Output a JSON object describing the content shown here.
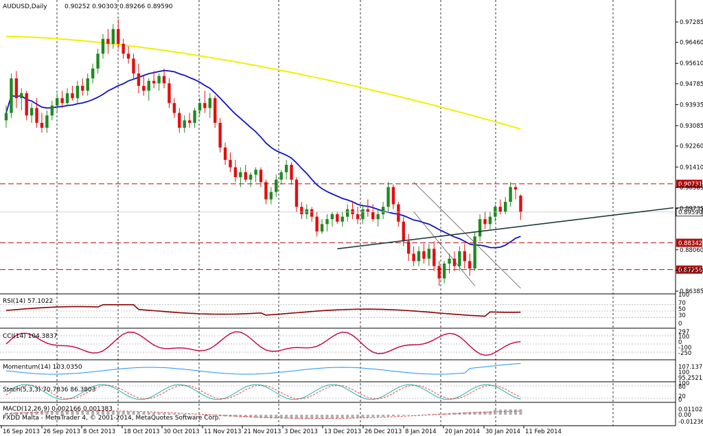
{
  "header": {
    "symbol": "AUDUSD,Daily",
    "ohlc": "0.90252 0.90303 0.89266 0.89590"
  },
  "footer": {
    "copyright": "FXDD Malta - MetaTrader 4, © 2001-2014, MetaQuotes Software Corp."
  },
  "indicators": {
    "rsi": "RSI(14) 57.1022",
    "cci": "CCI(14) 104.3837",
    "momentum": "Momentum(14) 103.0350",
    "stoch": "Stoch(5,3,3) 70.7836 86.3803",
    "macd": "MACD(12,26,9) 0.002166 0.001383"
  },
  "colors": {
    "bull": "#1f8a1f",
    "bear": "#e01010",
    "ma_fast": "#1010c8",
    "ma_slow": "#f0f000",
    "level": "#b01010",
    "trend": "#1e3a3a",
    "rsi_line": "#8b0000",
    "cci_line": "#c0003a",
    "momentum_line": "#1e90ff",
    "stoch_main": "#20b2aa",
    "stoch_signal": "#e04040",
    "macd_hist": "#b0b0b0",
    "macd_signal": "#e04040"
  },
  "chart_data": {
    "type": "candlestick",
    "price_axis": {
      "ylim": [
        0.86385,
        0.97285
      ],
      "ticks": [
        "0.97285",
        "0.96460",
        "0.95610",
        "0.94785",
        "0.93935",
        "0.93085",
        "0.92260",
        "0.91410",
        "0.90585",
        "0.89735",
        "0.88060",
        "0.87235",
        "0.86385"
      ]
    },
    "levels": [
      {
        "value": 0.90731,
        "label": "0.90731",
        "style": "dashed"
      },
      {
        "value": 0.88342,
        "label": "0.88342",
        "style": "dashed"
      },
      {
        "value": 0.87256,
        "label": "0.87256",
        "style": "dashed"
      },
      {
        "value": 0.8959,
        "label": "0.89590",
        "style": "current"
      }
    ],
    "date_labels": [
      "16 Sep 2013",
      "26 Sep 2013",
      "8 Oct 2013",
      "18 Oct 2013",
      "30 Oct 2013",
      "11 Nov 2013",
      "21 Nov 2013",
      "3 Dec 2013",
      "13 Dec 2013",
      "26 Dec 2013",
      "8 Jan 2014",
      "20 Jan 2014",
      "30 Jan 2014",
      "11 Feb 2014"
    ],
    "candles": [
      {
        "o": 0.933,
        "h": 0.939,
        "l": 0.93,
        "c": 0.936
      },
      {
        "o": 0.936,
        "h": 0.952,
        "l": 0.934,
        "c": 0.95
      },
      {
        "o": 0.95,
        "h": 0.953,
        "l": 0.938,
        "c": 0.942
      },
      {
        "o": 0.942,
        "h": 0.946,
        "l": 0.937,
        "c": 0.944
      },
      {
        "o": 0.944,
        "h": 0.945,
        "l": 0.933,
        "c": 0.935
      },
      {
        "o": 0.935,
        "h": 0.94,
        "l": 0.932,
        "c": 0.938
      },
      {
        "o": 0.938,
        "h": 0.942,
        "l": 0.93,
        "c": 0.932
      },
      {
        "o": 0.932,
        "h": 0.936,
        "l": 0.928,
        "c": 0.93
      },
      {
        "o": 0.93,
        "h": 0.937,
        "l": 0.928,
        "c": 0.935
      },
      {
        "o": 0.935,
        "h": 0.941,
        "l": 0.933,
        "c": 0.939
      },
      {
        "o": 0.939,
        "h": 0.944,
        "l": 0.936,
        "c": 0.942
      },
      {
        "o": 0.942,
        "h": 0.945,
        "l": 0.938,
        "c": 0.94
      },
      {
        "o": 0.94,
        "h": 0.946,
        "l": 0.939,
        "c": 0.944
      },
      {
        "o": 0.944,
        "h": 0.947,
        "l": 0.941,
        "c": 0.942
      },
      {
        "o": 0.942,
        "h": 0.949,
        "l": 0.94,
        "c": 0.947
      },
      {
        "o": 0.947,
        "h": 0.95,
        "l": 0.943,
        "c": 0.945
      },
      {
        "o": 0.945,
        "h": 0.952,
        "l": 0.943,
        "c": 0.95
      },
      {
        "o": 0.95,
        "h": 0.956,
        "l": 0.948,
        "c": 0.954
      },
      {
        "o": 0.954,
        "h": 0.962,
        "l": 0.952,
        "c": 0.96
      },
      {
        "o": 0.96,
        "h": 0.968,
        "l": 0.958,
        "c": 0.966
      },
      {
        "o": 0.966,
        "h": 0.97,
        "l": 0.96,
        "c": 0.964
      },
      {
        "o": 0.964,
        "h": 0.972,
        "l": 0.962,
        "c": 0.97
      },
      {
        "o": 0.97,
        "h": 0.974,
        "l": 0.962,
        "c": 0.964
      },
      {
        "o": 0.964,
        "h": 0.966,
        "l": 0.958,
        "c": 0.96
      },
      {
        "o": 0.96,
        "h": 0.963,
        "l": 0.956,
        "c": 0.958
      },
      {
        "o": 0.958,
        "h": 0.96,
        "l": 0.95,
        "c": 0.952
      },
      {
        "o": 0.952,
        "h": 0.956,
        "l": 0.944,
        "c": 0.947
      },
      {
        "o": 0.947,
        "h": 0.951,
        "l": 0.943,
        "c": 0.945
      },
      {
        "o": 0.945,
        "h": 0.95,
        "l": 0.941,
        "c": 0.949
      },
      {
        "o": 0.949,
        "h": 0.953,
        "l": 0.946,
        "c": 0.948
      },
      {
        "o": 0.948,
        "h": 0.952,
        "l": 0.945,
        "c": 0.951
      },
      {
        "o": 0.951,
        "h": 0.954,
        "l": 0.946,
        "c": 0.948
      },
      {
        "o": 0.948,
        "h": 0.95,
        "l": 0.938,
        "c": 0.94
      },
      {
        "o": 0.94,
        "h": 0.942,
        "l": 0.934,
        "c": 0.936
      },
      {
        "o": 0.936,
        "h": 0.938,
        "l": 0.928,
        "c": 0.93
      },
      {
        "o": 0.93,
        "h": 0.935,
        "l": 0.928,
        "c": 0.933
      },
      {
        "o": 0.933,
        "h": 0.936,
        "l": 0.93,
        "c": 0.932
      },
      {
        "o": 0.932,
        "h": 0.938,
        "l": 0.93,
        "c": 0.937
      },
      {
        "o": 0.937,
        "h": 0.942,
        "l": 0.935,
        "c": 0.94
      },
      {
        "o": 0.94,
        "h": 0.945,
        "l": 0.936,
        "c": 0.938
      },
      {
        "o": 0.938,
        "h": 0.944,
        "l": 0.934,
        "c": 0.942
      },
      {
        "o": 0.942,
        "h": 0.943,
        "l": 0.93,
        "c": 0.932
      },
      {
        "o": 0.932,
        "h": 0.934,
        "l": 0.92,
        "c": 0.922
      },
      {
        "o": 0.922,
        "h": 0.924,
        "l": 0.915,
        "c": 0.917
      },
      {
        "o": 0.917,
        "h": 0.92,
        "l": 0.912,
        "c": 0.914
      },
      {
        "o": 0.914,
        "h": 0.917,
        "l": 0.908,
        "c": 0.91
      },
      {
        "o": 0.91,
        "h": 0.914,
        "l": 0.906,
        "c": 0.912
      },
      {
        "o": 0.912,
        "h": 0.915,
        "l": 0.908,
        "c": 0.909
      },
      {
        "o": 0.909,
        "h": 0.912,
        "l": 0.906,
        "c": 0.911
      },
      {
        "o": 0.911,
        "h": 0.914,
        "l": 0.908,
        "c": 0.913
      },
      {
        "o": 0.913,
        "h": 0.914,
        "l": 0.906,
        "c": 0.908
      },
      {
        "o": 0.908,
        "h": 0.909,
        "l": 0.899,
        "c": 0.901
      },
      {
        "o": 0.901,
        "h": 0.906,
        "l": 0.899,
        "c": 0.904
      },
      {
        "o": 0.904,
        "h": 0.911,
        "l": 0.902,
        "c": 0.909
      },
      {
        "o": 0.909,
        "h": 0.913,
        "l": 0.907,
        "c": 0.912
      },
      {
        "o": 0.912,
        "h": 0.917,
        "l": 0.909,
        "c": 0.915
      },
      {
        "o": 0.915,
        "h": 0.916,
        "l": 0.907,
        "c": 0.909
      },
      {
        "o": 0.909,
        "h": 0.91,
        "l": 0.896,
        "c": 0.898
      },
      {
        "o": 0.898,
        "h": 0.9,
        "l": 0.893,
        "c": 0.895
      },
      {
        "o": 0.895,
        "h": 0.899,
        "l": 0.893,
        "c": 0.897
      },
      {
        "o": 0.897,
        "h": 0.898,
        "l": 0.892,
        "c": 0.894
      },
      {
        "o": 0.894,
        "h": 0.896,
        "l": 0.886,
        "c": 0.888
      },
      {
        "o": 0.888,
        "h": 0.893,
        "l": 0.887,
        "c": 0.891
      },
      {
        "o": 0.891,
        "h": 0.895,
        "l": 0.888,
        "c": 0.893
      },
      {
        "o": 0.893,
        "h": 0.896,
        "l": 0.89,
        "c": 0.895
      },
      {
        "o": 0.895,
        "h": 0.896,
        "l": 0.891,
        "c": 0.892
      },
      {
        "o": 0.892,
        "h": 0.896,
        "l": 0.89,
        "c": 0.894
      },
      {
        "o": 0.894,
        "h": 0.899,
        "l": 0.892,
        "c": 0.897
      },
      {
        "o": 0.897,
        "h": 0.9,
        "l": 0.893,
        "c": 0.895
      },
      {
        "o": 0.895,
        "h": 0.898,
        "l": 0.891,
        "c": 0.893
      },
      {
        "o": 0.893,
        "h": 0.899,
        "l": 0.891,
        "c": 0.897
      },
      {
        "o": 0.897,
        "h": 0.901,
        "l": 0.894,
        "c": 0.896
      },
      {
        "o": 0.896,
        "h": 0.899,
        "l": 0.892,
        "c": 0.893
      },
      {
        "o": 0.893,
        "h": 0.897,
        "l": 0.89,
        "c": 0.895
      },
      {
        "o": 0.895,
        "h": 0.9,
        "l": 0.893,
        "c": 0.898
      },
      {
        "o": 0.898,
        "h": 0.908,
        "l": 0.896,
        "c": 0.906
      },
      {
        "o": 0.906,
        "h": 0.907,
        "l": 0.897,
        "c": 0.899
      },
      {
        "o": 0.899,
        "h": 0.9,
        "l": 0.89,
        "c": 0.892
      },
      {
        "o": 0.892,
        "h": 0.894,
        "l": 0.882,
        "c": 0.884
      },
      {
        "o": 0.884,
        "h": 0.887,
        "l": 0.876,
        "c": 0.879
      },
      {
        "o": 0.879,
        "h": 0.882,
        "l": 0.874,
        "c": 0.876
      },
      {
        "o": 0.876,
        "h": 0.882,
        "l": 0.874,
        "c": 0.88
      },
      {
        "o": 0.88,
        "h": 0.883,
        "l": 0.875,
        "c": 0.877
      },
      {
        "o": 0.877,
        "h": 0.883,
        "l": 0.874,
        "c": 0.881
      },
      {
        "o": 0.881,
        "h": 0.884,
        "l": 0.872,
        "c": 0.874
      },
      {
        "o": 0.874,
        "h": 0.876,
        "l": 0.866,
        "c": 0.869
      },
      {
        "o": 0.869,
        "h": 0.876,
        "l": 0.867,
        "c": 0.875
      },
      {
        "o": 0.875,
        "h": 0.879,
        "l": 0.871,
        "c": 0.877
      },
      {
        "o": 0.877,
        "h": 0.88,
        "l": 0.872,
        "c": 0.874
      },
      {
        "o": 0.874,
        "h": 0.882,
        "l": 0.872,
        "c": 0.88
      },
      {
        "o": 0.88,
        "h": 0.883,
        "l": 0.873,
        "c": 0.876
      },
      {
        "o": 0.876,
        "h": 0.879,
        "l": 0.87,
        "c": 0.873
      },
      {
        "o": 0.873,
        "h": 0.888,
        "l": 0.872,
        "c": 0.886
      },
      {
        "o": 0.886,
        "h": 0.895,
        "l": 0.884,
        "c": 0.893
      },
      {
        "o": 0.893,
        "h": 0.896,
        "l": 0.889,
        "c": 0.891
      },
      {
        "o": 0.891,
        "h": 0.896,
        "l": 0.889,
        "c": 0.894
      },
      {
        "o": 0.894,
        "h": 0.899,
        "l": 0.892,
        "c": 0.898
      },
      {
        "o": 0.898,
        "h": 0.901,
        "l": 0.895,
        "c": 0.896
      },
      {
        "o": 0.896,
        "h": 0.902,
        "l": 0.895,
        "c": 0.9
      },
      {
        "o": 0.9,
        "h": 0.908,
        "l": 0.898,
        "c": 0.906
      },
      {
        "o": 0.906,
        "h": 0.907,
        "l": 0.901,
        "c": 0.905
      },
      {
        "o": 0.9025,
        "h": 0.903,
        "l": 0.8927,
        "c": 0.8959
      }
    ]
  }
}
